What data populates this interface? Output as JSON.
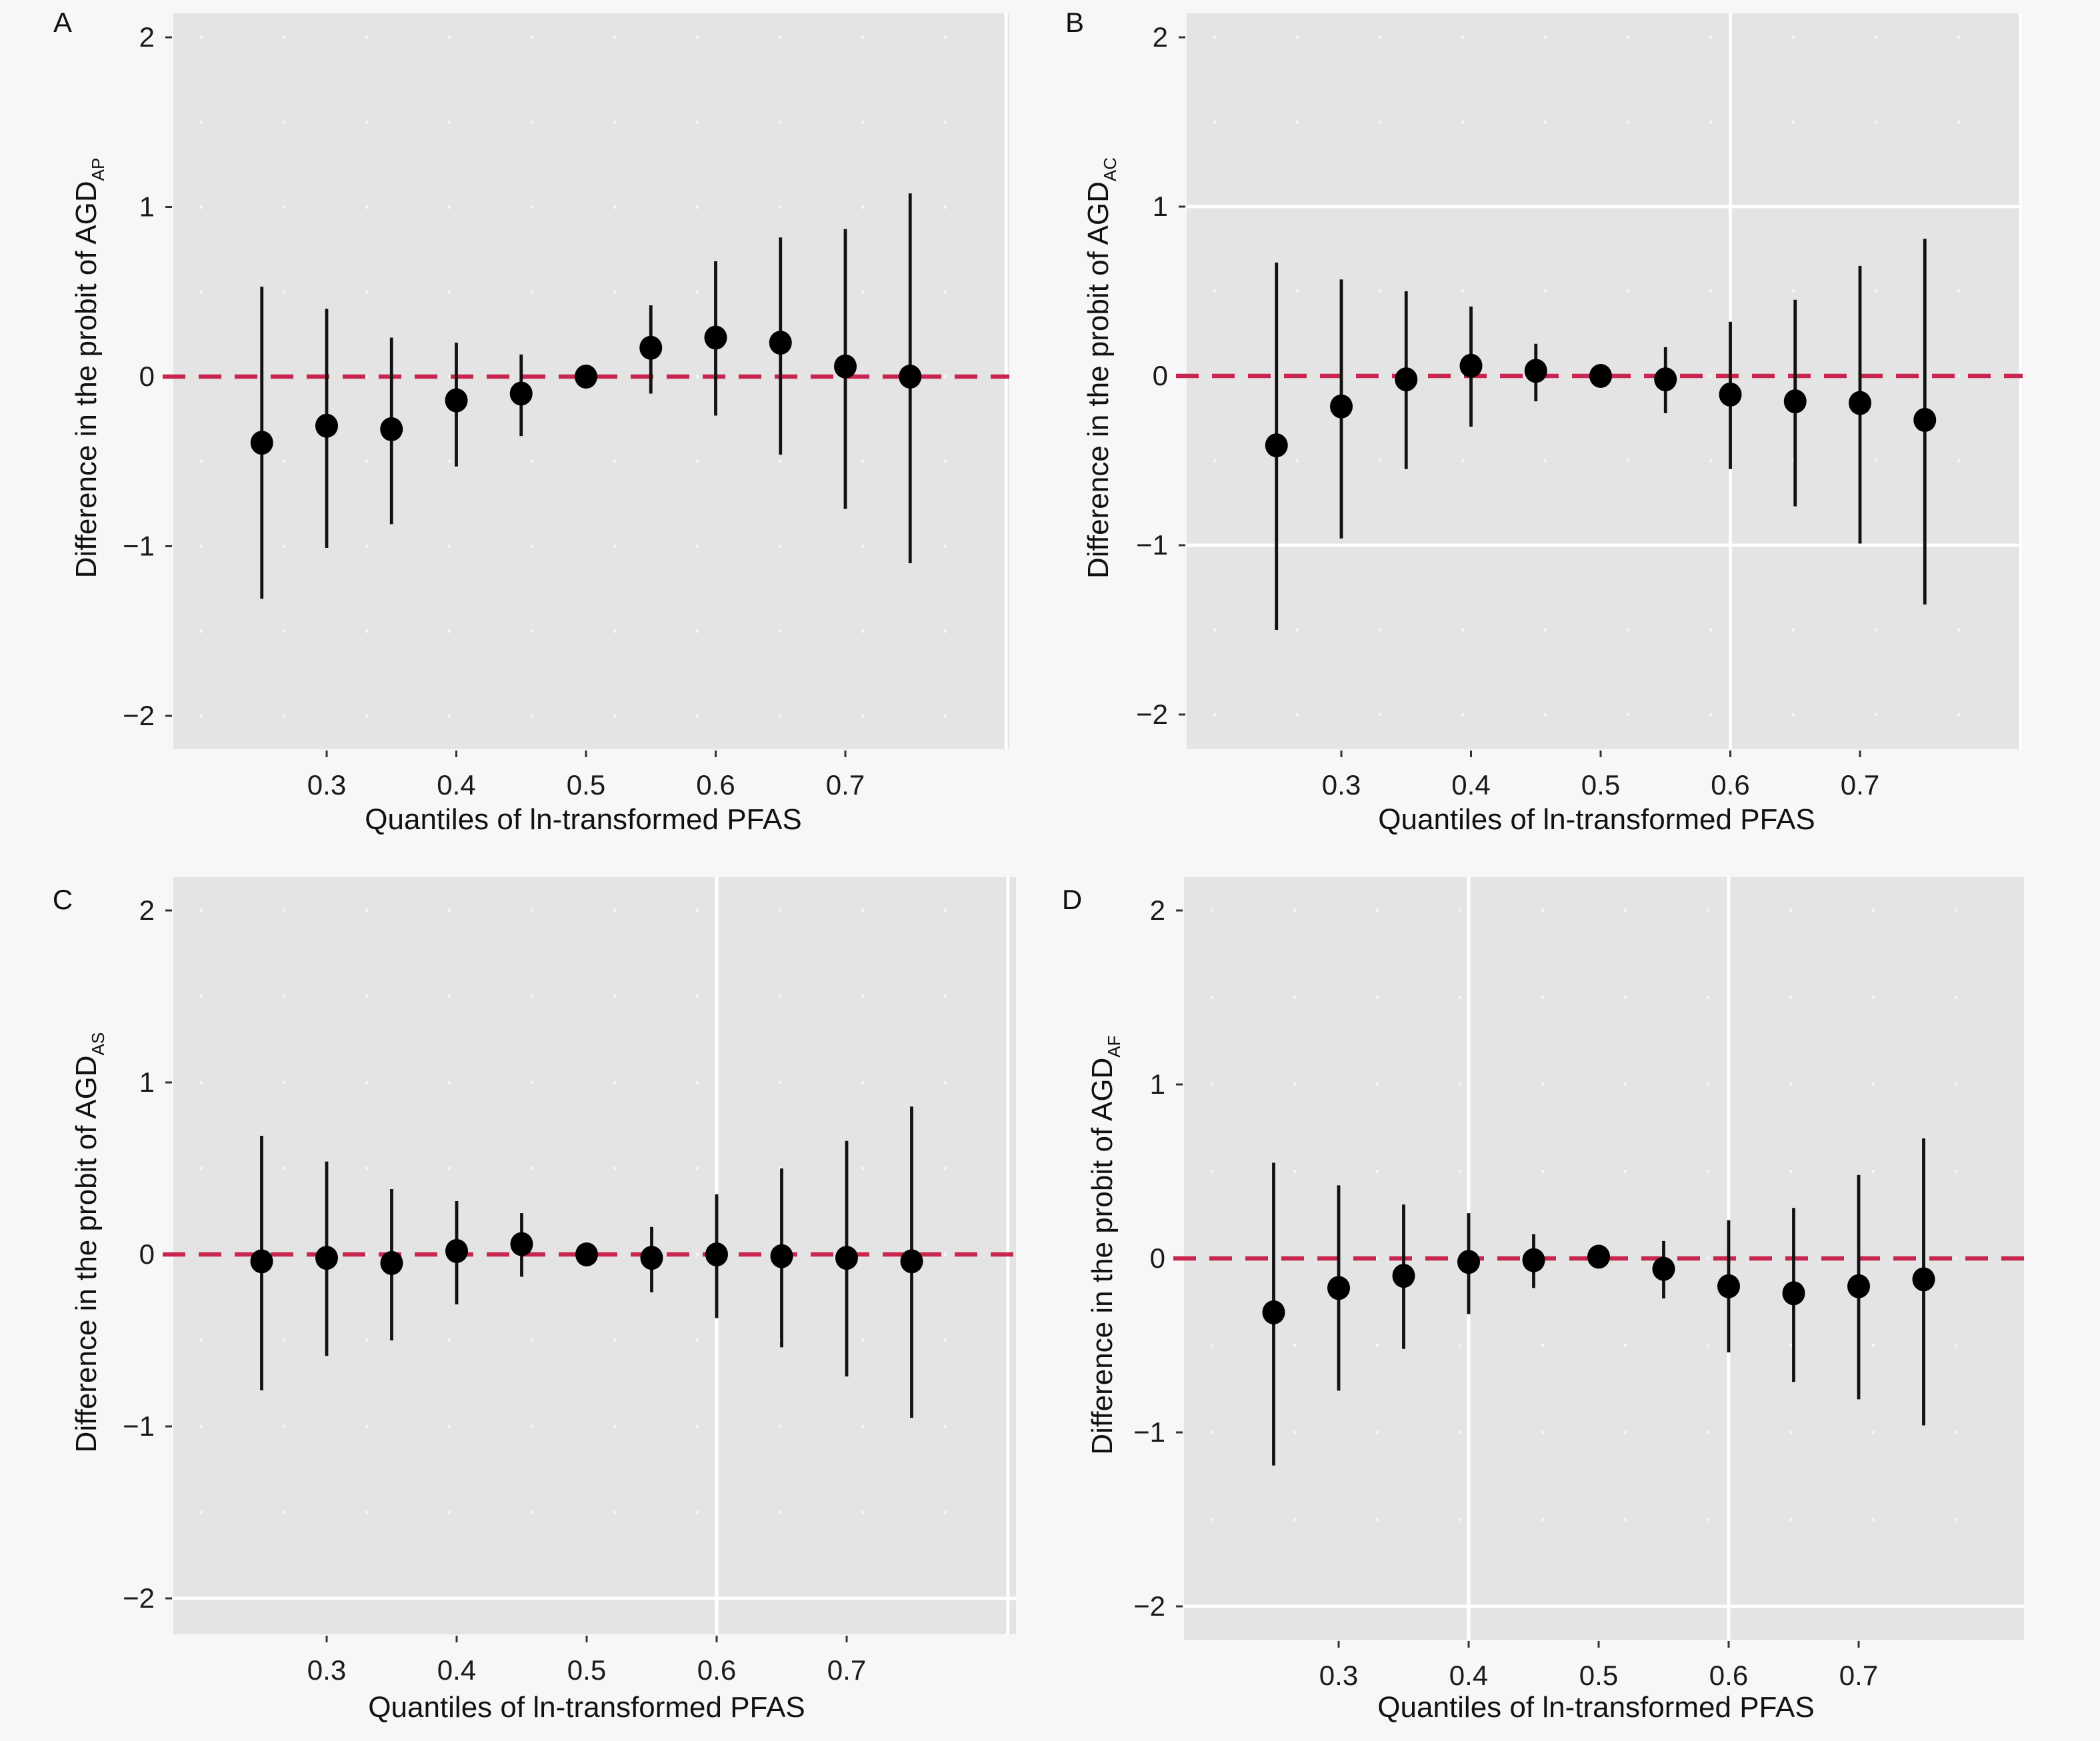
{
  "figure": {
    "reference_line_color": "#c8264e",
    "panel_background": "#e4e4e4",
    "page_background": "#f7f7f7",
    "point_color": "#000000"
  },
  "chart_data": [
    {
      "type": "scatter",
      "panel": "A",
      "title": "",
      "xlabel": "Quantiles of ln-transformed PFAS",
      "ylabel": "Difference in the probit of AGD",
      "ylabel_subscript": "AP",
      "xticks": [
        "0.3",
        "0.4",
        "0.5",
        "0.6",
        "0.7"
      ],
      "xtick_values": [
        0.3,
        0.4,
        0.5,
        0.6,
        0.7
      ],
      "yticks": [
        "2",
        "1",
        "0",
        "−1",
        "−2"
      ],
      "ytick_values": [
        2,
        1,
        0,
        -1,
        -2
      ],
      "xlim": [
        0.19,
        0.84
      ],
      "ylim": [
        -2.2,
        2.2
      ],
      "reference_line_y": 0,
      "grid": "partial",
      "x": [
        0.25,
        0.3,
        0.35,
        0.4,
        0.45,
        0.5,
        0.55,
        0.6,
        0.65,
        0.7,
        0.75
      ],
      "estimate": [
        -0.39,
        -0.29,
        -0.31,
        -0.14,
        -0.1,
        0.0,
        0.17,
        0.23,
        0.2,
        0.06,
        0.0
      ],
      "lower": [
        -1.31,
        -1.01,
        -0.87,
        -0.53,
        -0.35,
        0.0,
        -0.1,
        -0.23,
        -0.46,
        -0.78,
        -1.1
      ],
      "upper": [
        0.53,
        0.4,
        0.23,
        0.2,
        0.13,
        0.0,
        0.42,
        0.68,
        0.82,
        0.87,
        1.08
      ]
    },
    {
      "type": "scatter",
      "panel": "B",
      "title": "",
      "xlabel": "Quantiles of ln-transformed PFAS",
      "ylabel": "Difference in the probit of AGD",
      "ylabel_subscript": "AC",
      "xticks": [
        "0.3",
        "0.4",
        "0.5",
        "0.6",
        "0.7"
      ],
      "xtick_values": [
        0.3,
        0.4,
        0.5,
        0.6,
        0.7
      ],
      "yticks": [
        "2",
        "1",
        "0",
        "−1",
        "−2"
      ],
      "ytick_values": [
        2,
        1,
        0,
        -1,
        -2
      ],
      "xlim": [
        0.19,
        0.84
      ],
      "ylim": [
        -2.2,
        2.2
      ],
      "reference_line_y": 0,
      "grid": "partial",
      "x": [
        0.25,
        0.3,
        0.35,
        0.4,
        0.45,
        0.5,
        0.55,
        0.6,
        0.65,
        0.7,
        0.75
      ],
      "estimate": [
        -0.41,
        -0.18,
        -0.02,
        0.06,
        0.03,
        0.0,
        -0.02,
        -0.11,
        -0.15,
        -0.16,
        -0.26
      ],
      "lower": [
        -1.5,
        -0.96,
        -0.55,
        -0.3,
        -0.15,
        0.0,
        -0.22,
        -0.55,
        -0.77,
        -0.99,
        -1.35
      ],
      "upper": [
        0.67,
        0.57,
        0.5,
        0.41,
        0.19,
        0.0,
        0.17,
        0.32,
        0.45,
        0.65,
        0.81
      ]
    },
    {
      "type": "scatter",
      "panel": "C",
      "title": "",
      "xlabel": "Quantiles of ln-transformed PFAS",
      "ylabel": "Difference in the probit of AGD",
      "ylabel_subscript": "AS",
      "xticks": [
        "0.3",
        "0.4",
        "0.5",
        "0.6",
        "0.7"
      ],
      "xtick_values": [
        0.3,
        0.4,
        0.5,
        0.6,
        0.7
      ],
      "yticks": [
        "2",
        "1",
        "0",
        "−1",
        "−2"
      ],
      "ytick_values": [
        2,
        1,
        0,
        -1,
        -2
      ],
      "xlim": [
        0.19,
        0.84
      ],
      "ylim": [
        -2.2,
        2.2
      ],
      "reference_line_y": 0,
      "grid": "partial",
      "x": [
        0.25,
        0.3,
        0.35,
        0.4,
        0.45,
        0.5,
        0.55,
        0.6,
        0.65,
        0.7,
        0.75
      ],
      "estimate": [
        -0.04,
        -0.02,
        -0.05,
        0.02,
        0.06,
        0.0,
        -0.02,
        0.0,
        -0.01,
        -0.02,
        -0.04
      ],
      "lower": [
        -0.79,
        -0.59,
        -0.5,
        -0.29,
        -0.13,
        0.0,
        -0.22,
        -0.37,
        -0.54,
        -0.71,
        -0.95
      ],
      "upper": [
        0.69,
        0.54,
        0.38,
        0.31,
        0.24,
        0.0,
        0.16,
        0.35,
        0.5,
        0.66,
        0.86
      ]
    },
    {
      "type": "scatter",
      "panel": "D",
      "title": "",
      "xlabel": "Quantiles of ln-transformed PFAS",
      "ylabel": "Difference in the probit of AGD",
      "ylabel_subscript": "AF",
      "xticks": [
        "0.3",
        "0.4",
        "0.5",
        "0.6",
        "0.7"
      ],
      "xtick_values": [
        0.3,
        0.4,
        0.5,
        0.6,
        0.7
      ],
      "yticks": [
        "2",
        "1",
        "0",
        "−1",
        "−2"
      ],
      "ytick_values": [
        2,
        1,
        0,
        -1,
        -2
      ],
      "xlim": [
        0.19,
        0.84
      ],
      "ylim": [
        -2.2,
        2.2
      ],
      "reference_line_y": 0,
      "grid": "partial",
      "x": [
        0.25,
        0.3,
        0.35,
        0.4,
        0.45,
        0.5,
        0.55,
        0.6,
        0.65,
        0.7,
        0.75
      ],
      "estimate": [
        -0.31,
        -0.17,
        -0.1,
        -0.02,
        -0.01,
        0.01,
        -0.06,
        -0.16,
        -0.2,
        -0.16,
        -0.12
      ],
      "lower": [
        -1.19,
        -0.76,
        -0.52,
        -0.32,
        -0.17,
        0.01,
        -0.23,
        -0.54,
        -0.71,
        -0.81,
        -0.96
      ],
      "upper": [
        0.55,
        0.42,
        0.31,
        0.26,
        0.14,
        0.01,
        0.1,
        0.22,
        0.29,
        0.48,
        0.69
      ]
    }
  ]
}
